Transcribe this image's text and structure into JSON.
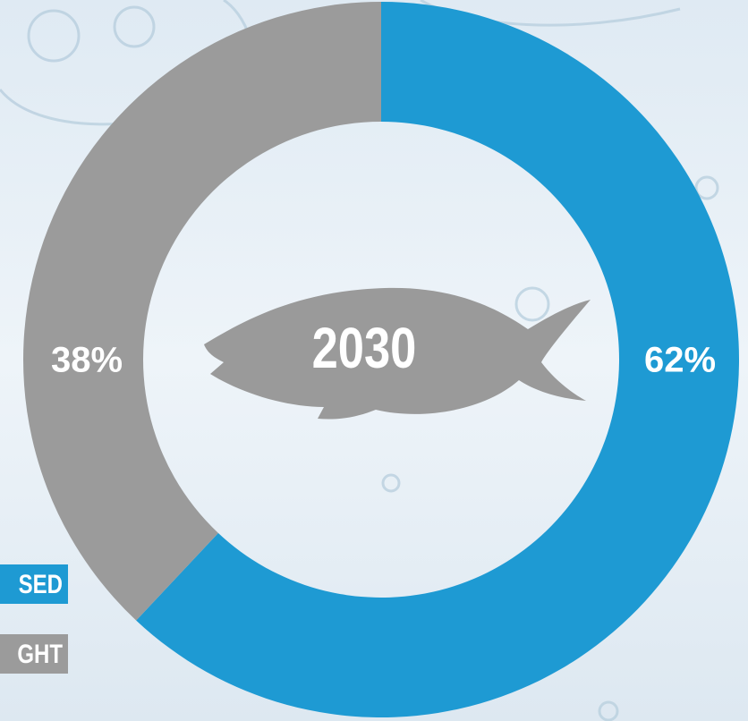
{
  "chart_data": {
    "type": "donut",
    "categories": [
      "SED",
      "GHT"
    ],
    "values": [
      62,
      38
    ],
    "value_labels": [
      "62%",
      "38%"
    ],
    "colors": [
      "#1e9ad3",
      "#9b9b9b"
    ],
    "center_label": "2030"
  }
}
